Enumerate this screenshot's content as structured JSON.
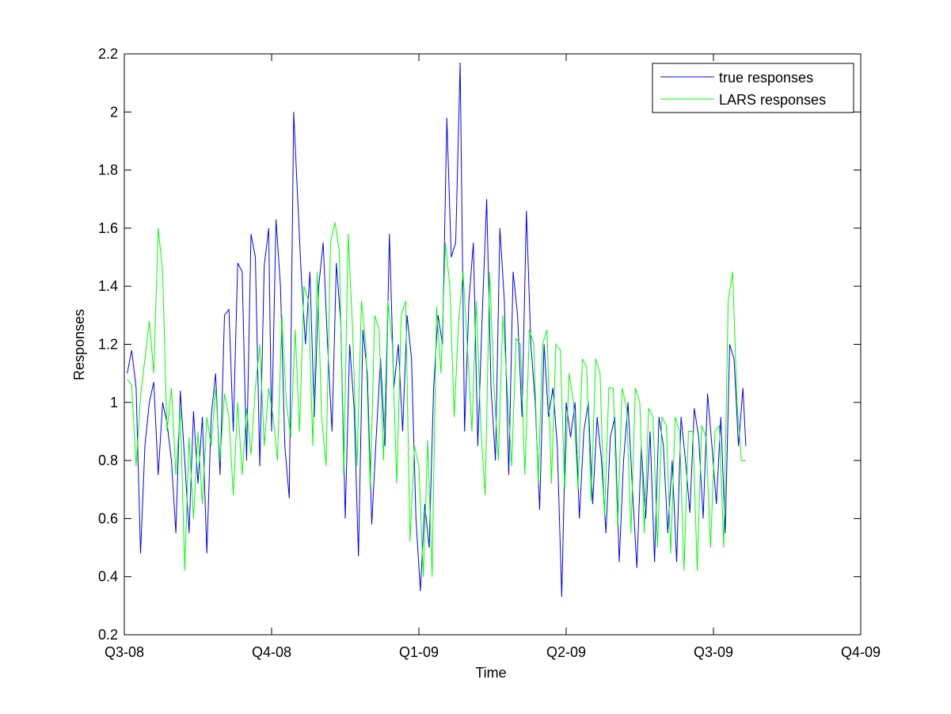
{
  "chart_data": {
    "type": "line",
    "title": "",
    "xlabel": "Time",
    "ylabel": "Responses",
    "xlim": [
      0,
      4
    ],
    "ylim": [
      0.2,
      2.2
    ],
    "x_ticks": [
      {
        "label": "Q3-08",
        "value": 0
      },
      {
        "label": "Q4-08",
        "value": 1
      },
      {
        "label": "Q1-09",
        "value": 2
      },
      {
        "label": "Q2-09",
        "value": 3
      },
      {
        "label": "Q3-09",
        "value": 4
      },
      {
        "label": "Q4-09",
        "value": 5
      }
    ],
    "y_ticks": [
      "0.2",
      "0.4",
      "0.6",
      "0.8",
      "1",
      "1.2",
      "1.4",
      "1.6",
      "1.8",
      "2",
      "2.2"
    ],
    "grid": false,
    "legend_position": "top-right",
    "series": [
      {
        "name": "true responses",
        "color": "#0000ff",
        "points": [
          [
            0.02,
            1.1
          ],
          [
            0.05,
            1.18
          ],
          [
            0.08,
            1.05
          ],
          [
            0.11,
            0.48
          ],
          [
            0.14,
            0.85
          ],
          [
            0.17,
            1.0
          ],
          [
            0.2,
            1.07
          ],
          [
            0.23,
            0.75
          ],
          [
            0.26,
            1.0
          ],
          [
            0.29,
            0.93
          ],
          [
            0.32,
            0.8
          ],
          [
            0.35,
            0.55
          ],
          [
            0.38,
            1.04
          ],
          [
            0.41,
            0.8
          ],
          [
            0.44,
            0.55
          ],
          [
            0.47,
            0.97
          ],
          [
            0.5,
            0.72
          ],
          [
            0.53,
            0.95
          ],
          [
            0.56,
            0.48
          ],
          [
            0.59,
            0.95
          ],
          [
            0.62,
            1.1
          ],
          [
            0.65,
            0.75
          ],
          [
            0.68,
            1.3
          ],
          [
            0.71,
            1.32
          ],
          [
            0.74,
            0.9
          ],
          [
            0.77,
            1.48
          ],
          [
            0.8,
            1.45
          ],
          [
            0.83,
            0.8
          ],
          [
            0.86,
            1.58
          ],
          [
            0.89,
            1.5
          ],
          [
            0.92,
            0.78
          ],
          [
            0.95,
            1.47
          ],
          [
            0.98,
            1.6
          ],
          [
            1.0,
            0.9
          ],
          [
            1.03,
            1.63
          ],
          [
            1.06,
            1.4
          ],
          [
            1.09,
            0.85
          ],
          [
            1.12,
            0.67
          ],
          [
            1.15,
            2.0
          ],
          [
            1.17,
            1.78
          ],
          [
            1.2,
            1.45
          ],
          [
            1.23,
            1.2
          ],
          [
            1.26,
            1.45
          ],
          [
            1.29,
            0.95
          ],
          [
            1.32,
            1.4
          ],
          [
            1.35,
            1.55
          ],
          [
            1.38,
            1.2
          ],
          [
            1.41,
            0.9
          ],
          [
            1.44,
            1.48
          ],
          [
            1.47,
            1.27
          ],
          [
            1.5,
            0.6
          ],
          [
            1.53,
            1.2
          ],
          [
            1.56,
            0.98
          ],
          [
            1.59,
            0.47
          ],
          [
            1.62,
            1.25
          ],
          [
            1.65,
            1.1
          ],
          [
            1.68,
            0.58
          ],
          [
            1.71,
            0.88
          ],
          [
            1.74,
            1.15
          ],
          [
            1.77,
            0.85
          ],
          [
            1.8,
            1.58
          ],
          [
            1.83,
            1.05
          ],
          [
            1.86,
            1.2
          ],
          [
            1.89,
            0.9
          ],
          [
            1.92,
            1.3
          ],
          [
            1.95,
            1.15
          ],
          [
            1.98,
            0.6
          ],
          [
            2.01,
            0.35
          ],
          [
            2.04,
            0.65
          ],
          [
            2.07,
            0.5
          ],
          [
            2.1,
            1.05
          ],
          [
            2.13,
            1.3
          ],
          [
            2.16,
            1.2
          ],
          [
            2.19,
            1.98
          ],
          [
            2.22,
            1.5
          ],
          [
            2.25,
            1.55
          ],
          [
            2.28,
            2.17
          ],
          [
            2.31,
            0.9
          ],
          [
            2.34,
            1.35
          ],
          [
            2.37,
            1.55
          ],
          [
            2.4,
            0.85
          ],
          [
            2.43,
            1.3
          ],
          [
            2.46,
            1.7
          ],
          [
            2.49,
            1.05
          ],
          [
            2.52,
            0.8
          ],
          [
            2.55,
            1.6
          ],
          [
            2.58,
            1.35
          ],
          [
            2.61,
            0.75
          ],
          [
            2.64,
            1.45
          ],
          [
            2.67,
            1.3
          ],
          [
            2.7,
            0.95
          ],
          [
            2.73,
            1.66
          ],
          [
            2.76,
            1.2
          ],
          [
            2.79,
            1.0
          ],
          [
            2.82,
            0.63
          ],
          [
            2.85,
            1.2
          ],
          [
            2.88,
            0.95
          ],
          [
            2.91,
            1.05
          ],
          [
            2.94,
            0.85
          ],
          [
            2.97,
            0.33
          ],
          [
            3.0,
            1.0
          ],
          [
            3.03,
            0.88
          ],
          [
            3.06,
            1.0
          ],
          [
            3.09,
            0.6
          ],
          [
            3.12,
            0.9
          ],
          [
            3.15,
            1.0
          ],
          [
            3.18,
            0.65
          ],
          [
            3.21,
            0.95
          ],
          [
            3.24,
            0.8
          ],
          [
            3.27,
            0.55
          ],
          [
            3.3,
            0.88
          ],
          [
            3.33,
            0.95
          ],
          [
            3.36,
            0.45
          ],
          [
            3.39,
            0.8
          ],
          [
            3.42,
            1.0
          ],
          [
            3.45,
            0.7
          ],
          [
            3.48,
            0.43
          ],
          [
            3.51,
            0.85
          ],
          [
            3.54,
            0.6
          ],
          [
            3.57,
            0.9
          ],
          [
            3.6,
            0.45
          ],
          [
            3.63,
            0.95
          ],
          [
            3.66,
            0.85
          ],
          [
            3.69,
            0.55
          ],
          [
            3.72,
            0.8
          ],
          [
            3.75,
            0.45
          ],
          [
            3.78,
            0.95
          ],
          [
            3.81,
            0.8
          ],
          [
            3.84,
            0.62
          ],
          [
            3.87,
            0.98
          ],
          [
            3.9,
            0.88
          ],
          [
            3.93,
            0.6
          ],
          [
            3.96,
            1.03
          ],
          [
            3.99,
            0.85
          ],
          [
            4.02,
            0.65
          ],
          [
            4.05,
            0.95
          ],
          [
            4.08,
            0.55
          ],
          [
            4.11,
            1.2
          ],
          [
            4.14,
            1.15
          ],
          [
            4.17,
            0.85
          ],
          [
            4.2,
            1.05
          ],
          [
            4.22,
            0.85
          ]
        ]
      },
      {
        "name": "LARS responses",
        "color": "#00ff00",
        "points": [
          [
            0.02,
            1.08
          ],
          [
            0.05,
            1.06
          ],
          [
            0.08,
            0.78
          ],
          [
            0.11,
            1.02
          ],
          [
            0.14,
            1.15
          ],
          [
            0.17,
            1.28
          ],
          [
            0.2,
            1.1
          ],
          [
            0.23,
            1.6
          ],
          [
            0.26,
            1.45
          ],
          [
            0.29,
            0.9
          ],
          [
            0.32,
            1.05
          ],
          [
            0.35,
            0.75
          ],
          [
            0.38,
            0.98
          ],
          [
            0.41,
            0.42
          ],
          [
            0.44,
            0.88
          ],
          [
            0.47,
            0.6
          ],
          [
            0.5,
            0.9
          ],
          [
            0.53,
            0.65
          ],
          [
            0.56,
            0.95
          ],
          [
            0.59,
            0.85
          ],
          [
            0.62,
            1.05
          ],
          [
            0.65,
            0.8
          ],
          [
            0.68,
            1.03
          ],
          [
            0.71,
            0.95
          ],
          [
            0.74,
            0.68
          ],
          [
            0.77,
            1.0
          ],
          [
            0.8,
            0.75
          ],
          [
            0.83,
            0.98
          ],
          [
            0.86,
            0.82
          ],
          [
            0.89,
            1.05
          ],
          [
            0.92,
            1.2
          ],
          [
            0.95,
            0.85
          ],
          [
            0.98,
            1.05
          ],
          [
            1.01,
            0.95
          ],
          [
            1.04,
            0.8
          ],
          [
            1.07,
            1.3
          ],
          [
            1.1,
            1.0
          ],
          [
            1.13,
            0.88
          ],
          [
            1.16,
            1.25
          ],
          [
            1.19,
            0.9
          ],
          [
            1.22,
            1.4
          ],
          [
            1.25,
            1.35
          ],
          [
            1.28,
            0.85
          ],
          [
            1.31,
            1.45
          ],
          [
            1.34,
            0.95
          ],
          [
            1.37,
            0.78
          ],
          [
            1.4,
            1.55
          ],
          [
            1.43,
            1.62
          ],
          [
            1.46,
            1.52
          ],
          [
            1.49,
            0.75
          ],
          [
            1.52,
            1.58
          ],
          [
            1.55,
            1.25
          ],
          [
            1.58,
            0.78
          ],
          [
            1.61,
            1.35
          ],
          [
            1.64,
            1.2
          ],
          [
            1.67,
            0.7
          ],
          [
            1.7,
            1.3
          ],
          [
            1.73,
            1.25
          ],
          [
            1.76,
            0.8
          ],
          [
            1.79,
            1.35
          ],
          [
            1.82,
            1.2
          ],
          [
            1.85,
            0.72
          ],
          [
            1.88,
            1.3
          ],
          [
            1.91,
            1.35
          ],
          [
            1.94,
            0.52
          ],
          [
            1.97,
            0.85
          ],
          [
            2.0,
            0.78
          ],
          [
            2.03,
            0.4
          ],
          [
            2.06,
            0.87
          ],
          [
            2.09,
            0.4
          ],
          [
            2.12,
            1.33
          ],
          [
            2.15,
            1.1
          ],
          [
            2.18,
            1.55
          ],
          [
            2.21,
            1.4
          ],
          [
            2.24,
            0.95
          ],
          [
            2.27,
            1.28
          ],
          [
            2.3,
            1.45
          ],
          [
            2.33,
            1.18
          ],
          [
            2.36,
            0.9
          ],
          [
            2.39,
            1.35
          ],
          [
            2.42,
            0.92
          ],
          [
            2.45,
            0.68
          ],
          [
            2.48,
            1.45
          ],
          [
            2.51,
            1.05
          ],
          [
            2.54,
            0.8
          ],
          [
            2.57,
            1.3
          ],
          [
            2.6,
            1.05
          ],
          [
            2.63,
            0.78
          ],
          [
            2.66,
            1.22
          ],
          [
            2.69,
            1.2
          ],
          [
            2.72,
            0.75
          ],
          [
            2.75,
            1.25
          ],
          [
            2.78,
            1.2
          ],
          [
            2.81,
            0.72
          ],
          [
            2.84,
            1.2
          ],
          [
            2.87,
            1.25
          ],
          [
            2.9,
            0.72
          ],
          [
            2.93,
            1.2
          ],
          [
            2.96,
            1.18
          ],
          [
            2.99,
            0.7
          ],
          [
            3.02,
            1.1
          ],
          [
            3.05,
            1.0
          ],
          [
            3.08,
            0.7
          ],
          [
            3.11,
            1.15
          ],
          [
            3.14,
            1.12
          ],
          [
            3.17,
            0.66
          ],
          [
            3.2,
            1.15
          ],
          [
            3.23,
            1.1
          ],
          [
            3.26,
            0.6
          ],
          [
            3.29,
            1.05
          ],
          [
            3.32,
            1.05
          ],
          [
            3.35,
            0.57
          ],
          [
            3.38,
            1.05
          ],
          [
            3.41,
            0.98
          ],
          [
            3.44,
            0.55
          ],
          [
            3.47,
            1.05
          ],
          [
            3.5,
            1.0
          ],
          [
            3.53,
            0.55
          ],
          [
            3.56,
            0.98
          ],
          [
            3.59,
            0.95
          ],
          [
            3.62,
            0.5
          ],
          [
            3.65,
            0.95
          ],
          [
            3.68,
            0.92
          ],
          [
            3.71,
            0.48
          ],
          [
            3.74,
            0.95
          ],
          [
            3.77,
            0.9
          ],
          [
            3.8,
            0.42
          ],
          [
            3.83,
            0.9
          ],
          [
            3.86,
            0.9
          ],
          [
            3.89,
            0.42
          ],
          [
            3.92,
            0.92
          ],
          [
            3.95,
            0.88
          ],
          [
            3.98,
            0.5
          ],
          [
            4.01,
            0.9
          ],
          [
            4.04,
            0.92
          ],
          [
            4.07,
            0.5
          ],
          [
            4.1,
            1.35
          ],
          [
            4.13,
            1.45
          ],
          [
            4.16,
            1.0
          ],
          [
            4.19,
            0.8
          ],
          [
            4.22,
            0.8
          ]
        ]
      }
    ]
  }
}
